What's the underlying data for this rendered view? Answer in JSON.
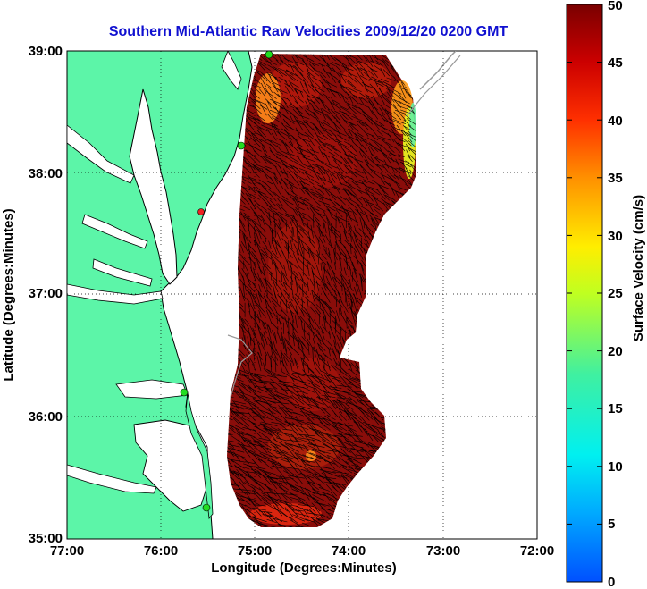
{
  "map": {
    "title": "Southern Mid-Atlantic Raw Velocities 2009/12/20 0200 GMT",
    "xlabel": "Longitude (Degrees:Minutes)",
    "ylabel": "Latitude (Degrees:Minutes)",
    "x_ticks": [
      "77:00",
      "76:00",
      "75:00",
      "74:00",
      "73:00",
      "72:00"
    ],
    "y_ticks": [
      "39:00",
      "38:00",
      "37:00",
      "36:00",
      "35:00"
    ],
    "lon_range": [
      -77,
      -72
    ],
    "lat_range": [
      35,
      39
    ],
    "grid": "dotted",
    "land_color": "#5cf5a8",
    "coast_color": "#000000",
    "isobath_color": "#999999",
    "vector_color": "#000000",
    "station_color": "#22dd22",
    "station_alert_color": "#ee2222"
  },
  "colorbar": {
    "label": "Surface Velocity (cm/s)",
    "ticks": [
      "50",
      "45",
      "40",
      "35",
      "30",
      "25",
      "20",
      "15",
      "10",
      "5",
      "0"
    ],
    "range": [
      0,
      50
    ],
    "colormap": "jet"
  }
}
